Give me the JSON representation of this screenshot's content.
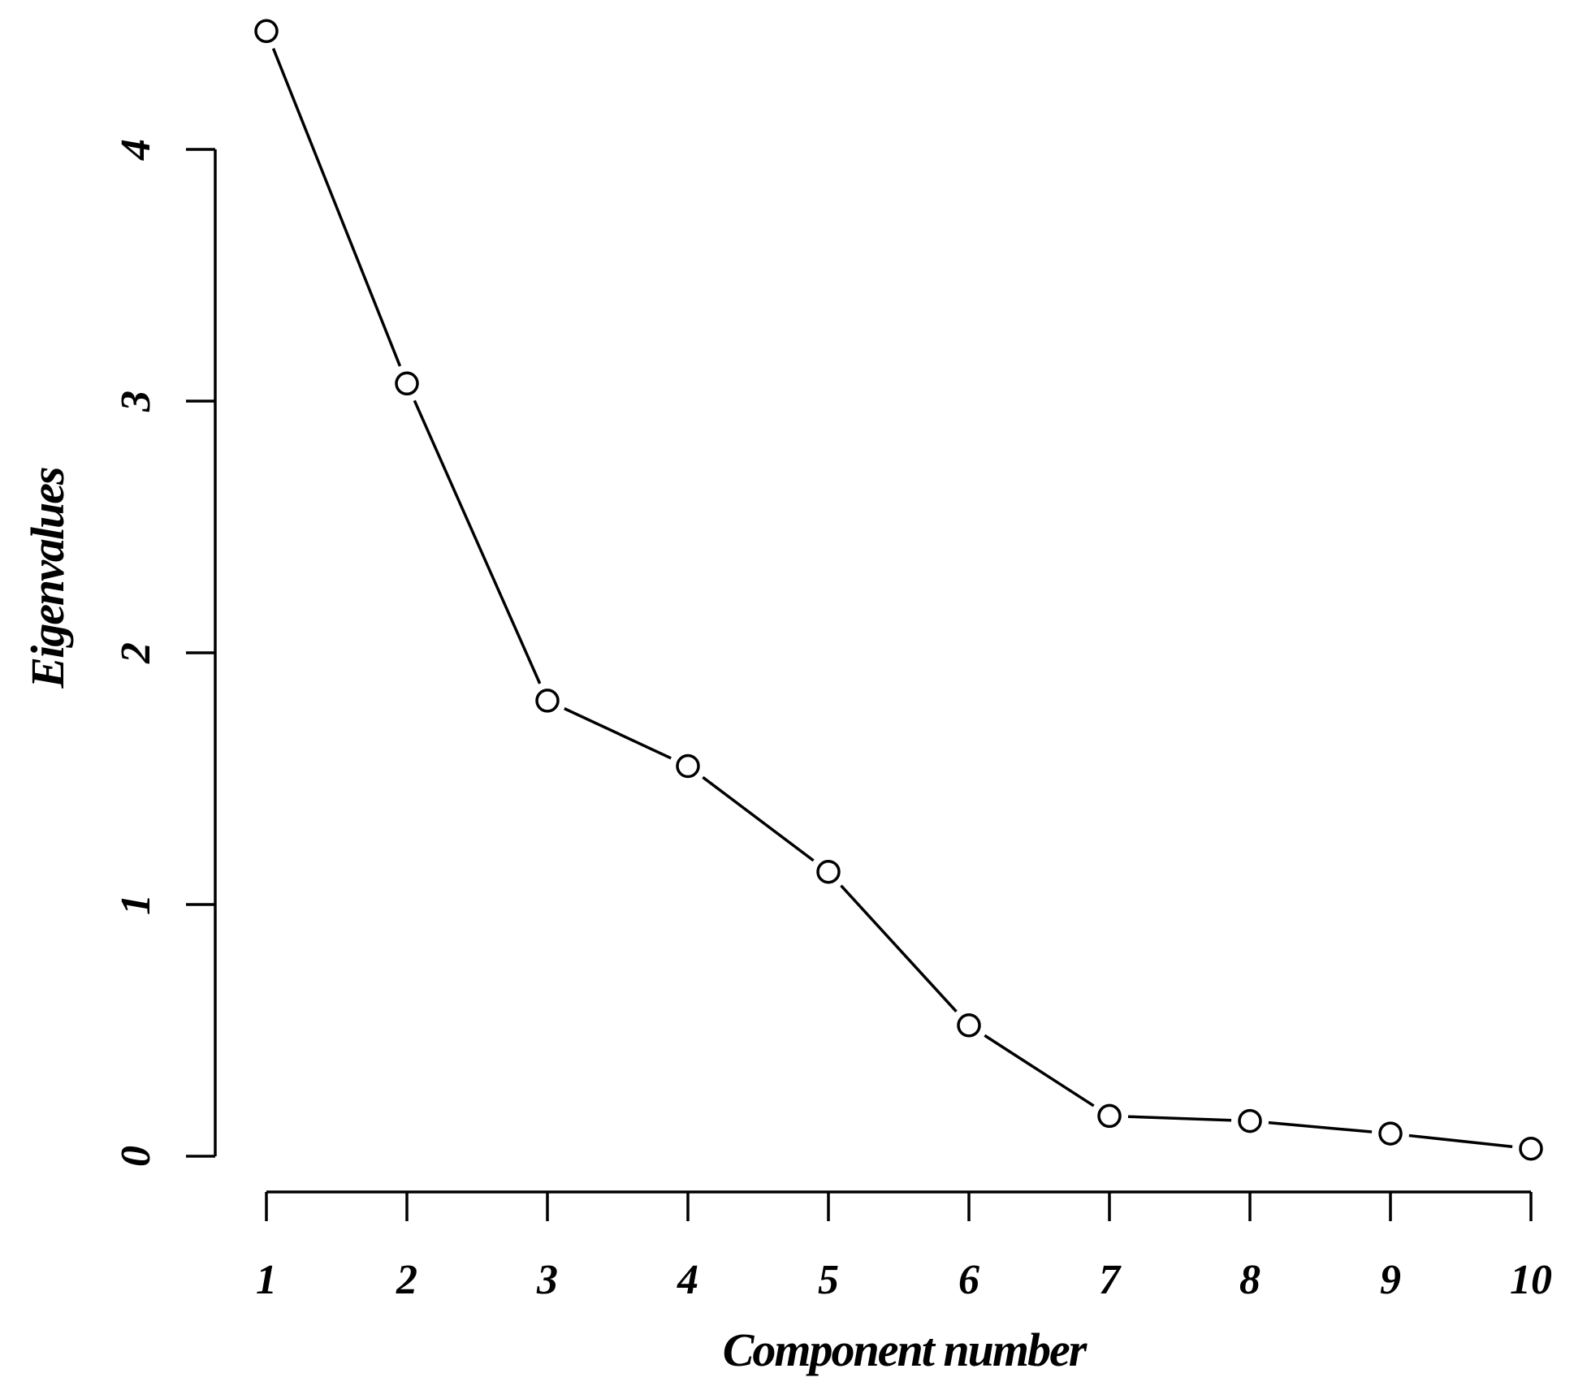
{
  "chart_data": {
    "type": "line",
    "title": "",
    "xlabel": "Component number",
    "ylabel": "Eigenvalues",
    "x": [
      1,
      2,
      3,
      4,
      5,
      6,
      7,
      8,
      9,
      10
    ],
    "x_tick_labels": [
      "1",
      "2",
      "3",
      "4",
      "5",
      "6",
      "7",
      "8",
      "9",
      "10"
    ],
    "y_ticks": [
      0,
      1,
      2,
      3,
      4
    ],
    "y_tick_labels": [
      "0",
      "1",
      "2",
      "3",
      "4"
    ],
    "series": [
      {
        "values": [
          4.47,
          3.07,
          1.81,
          1.55,
          1.13,
          0.52,
          0.16,
          0.14,
          0.09,
          0.03
        ]
      }
    ],
    "xlim": [
      1,
      10
    ],
    "ylim": [
      0,
      4
    ],
    "grid": false,
    "marker": "open-circle",
    "colors": {
      "line": "#000000",
      "marker_fill": "#ffffff",
      "background": "#ffffff"
    }
  }
}
